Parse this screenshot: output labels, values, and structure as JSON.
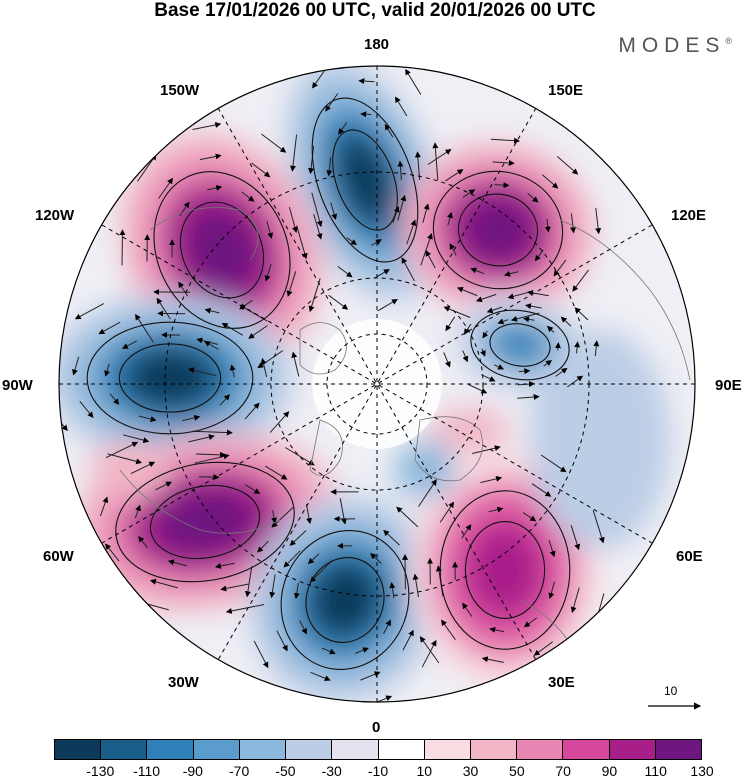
{
  "header": {
    "title": "Base 17/01/2026 00 UTC, valid 20/01/2026 00 UTC",
    "brand": "MODES",
    "brand_mark": "®"
  },
  "map": {
    "projection": "north polar stereographic",
    "longitude_labels": {
      "top": "180",
      "top_left": "150W",
      "top_right": "150E",
      "upper_left": "120W",
      "upper_right": "120E",
      "left": "90W",
      "right": "90E",
      "lower_left": "60W",
      "lower_right": "60E",
      "bottom_left": "30W",
      "bottom_right": "30E",
      "bottom": "0"
    },
    "reference_vector_label": "10",
    "anomaly_centers": [
      {
        "sign": "negative",
        "label": "low 180 sector",
        "value": -130
      },
      {
        "sign": "positive",
        "label": "high 150W sector",
        "value": 130
      },
      {
        "sign": "positive",
        "label": "high 130E sector",
        "value": 130
      },
      {
        "sign": "negative",
        "label": "low 90W sector",
        "value": -130
      },
      {
        "sign": "negative",
        "label": "low 80E sector",
        "value": -90
      },
      {
        "sign": "positive",
        "label": "high 60W sector",
        "value": 130
      },
      {
        "sign": "negative",
        "label": "low 15W sector",
        "value": -130
      },
      {
        "sign": "positive",
        "label": "high 30E sector",
        "value": 110
      }
    ]
  },
  "colorbar": {
    "colors": [
      "#0d3a5a",
      "#1a5f8a",
      "#2f80b8",
      "#5a9ccb",
      "#8bb8dc",
      "#bccde6",
      "#e3e3ef",
      "#ffffff",
      "#f9dde3",
      "#f2b6c6",
      "#e986b3",
      "#d8479e",
      "#a81f8a",
      "#6e1780"
    ],
    "tick_labels": [
      "-130",
      "-110",
      "-90",
      "-70",
      "-50",
      "-30",
      "-10",
      "10",
      "30",
      "50",
      "70",
      "90",
      "110",
      "130"
    ]
  }
}
